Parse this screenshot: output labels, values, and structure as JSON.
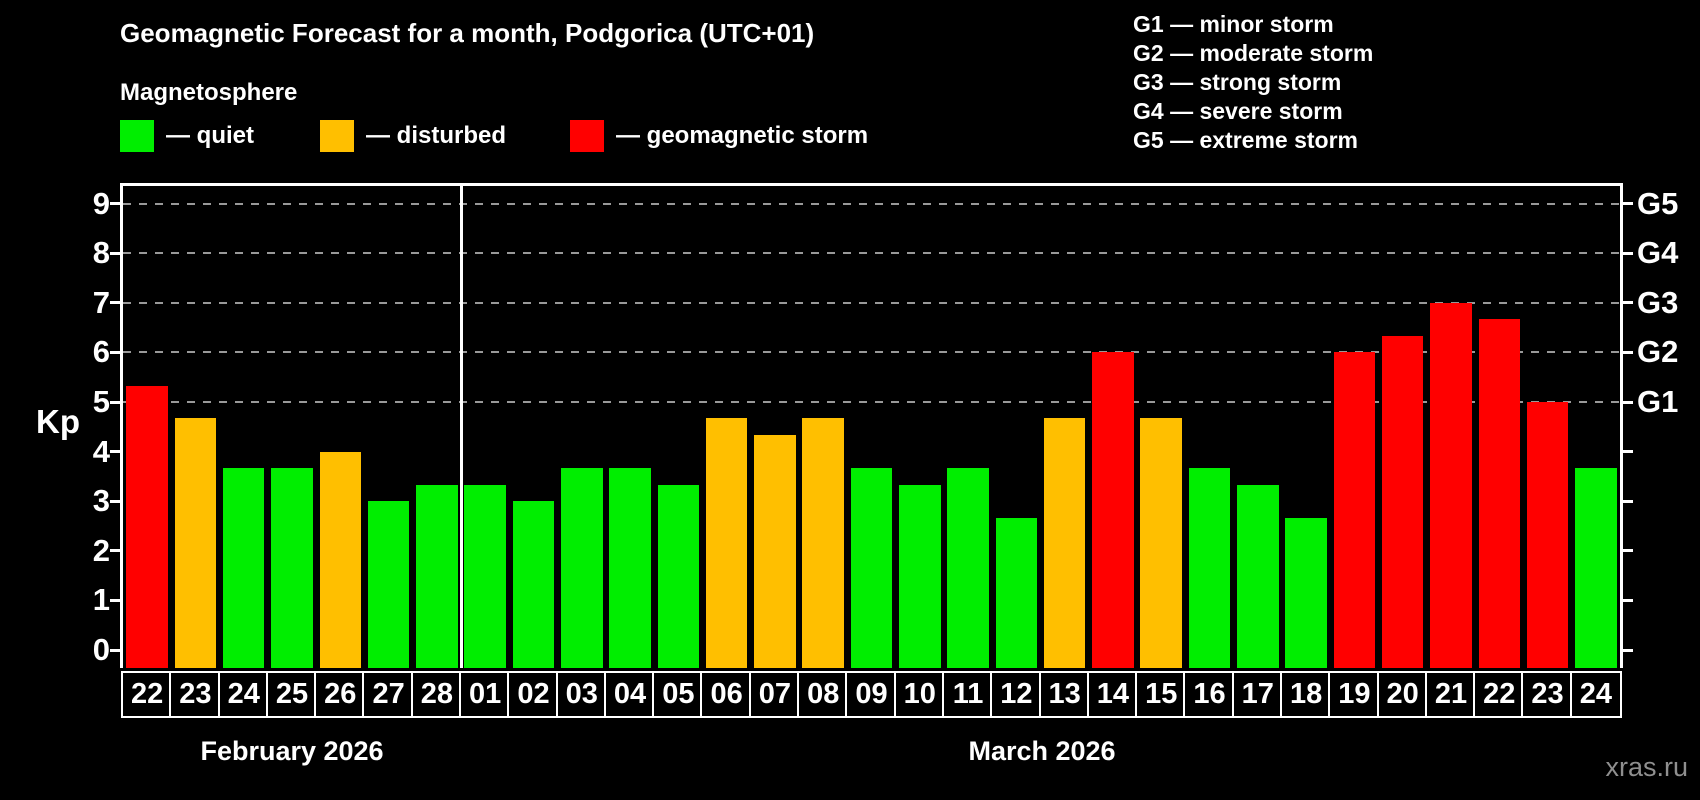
{
  "header": {
    "title": "Geomagnetic Forecast for a month, Podgorica (UTC+01)",
    "subtitle": "Magnetosphere"
  },
  "legend": {
    "items": [
      {
        "key": "quiet",
        "label": "— quiet",
        "color": "#00ee00"
      },
      {
        "key": "disturbed",
        "label": "— disturbed",
        "color": "#ffbf00"
      },
      {
        "key": "storm",
        "label": "— geomagnetic storm",
        "color": "#ff0000"
      }
    ]
  },
  "g_legend": {
    "items": [
      {
        "label": "G1 — minor storm"
      },
      {
        "label": "G2 — moderate storm"
      },
      {
        "label": "G3 — strong storm"
      },
      {
        "label": "G4 — severe storm"
      },
      {
        "label": "G5 — extreme storm"
      }
    ]
  },
  "chart_data": {
    "type": "bar",
    "ylabel": "Kp",
    "ylim": [
      -0.36,
      9.42
    ],
    "y_ticks": [
      0,
      1,
      2,
      3,
      4,
      5,
      6,
      7,
      8,
      9
    ],
    "gridlines": [
      5,
      6,
      7,
      8,
      9
    ],
    "grid_color": "#999999",
    "right_axis_labels": [
      {
        "value": 5,
        "label": "G1"
      },
      {
        "value": 6,
        "label": "G2"
      },
      {
        "value": 7,
        "label": "G3"
      },
      {
        "value": 8,
        "label": "G4"
      },
      {
        "value": 9,
        "label": "G5"
      }
    ],
    "months": [
      {
        "label": "February 2026",
        "day_count": 7
      },
      {
        "label": "March 2026",
        "day_count": 24
      }
    ],
    "points": [
      {
        "day": "22",
        "kp": 5.33,
        "status": "storm"
      },
      {
        "day": "23",
        "kp": 4.67,
        "status": "disturbed"
      },
      {
        "day": "24",
        "kp": 3.67,
        "status": "quiet"
      },
      {
        "day": "25",
        "kp": 3.67,
        "status": "quiet"
      },
      {
        "day": "26",
        "kp": 4.0,
        "status": "disturbed"
      },
      {
        "day": "27",
        "kp": 3.0,
        "status": "quiet"
      },
      {
        "day": "28",
        "kp": 3.33,
        "status": "quiet"
      },
      {
        "day": "01",
        "kp": 3.33,
        "status": "quiet"
      },
      {
        "day": "02",
        "kp": 3.0,
        "status": "quiet"
      },
      {
        "day": "03",
        "kp": 3.67,
        "status": "quiet"
      },
      {
        "day": "04",
        "kp": 3.67,
        "status": "quiet"
      },
      {
        "day": "05",
        "kp": 3.33,
        "status": "quiet"
      },
      {
        "day": "06",
        "kp": 4.67,
        "status": "disturbed"
      },
      {
        "day": "07",
        "kp": 4.33,
        "status": "disturbed"
      },
      {
        "day": "08",
        "kp": 4.67,
        "status": "disturbed"
      },
      {
        "day": "09",
        "kp": 3.67,
        "status": "quiet"
      },
      {
        "day": "10",
        "kp": 3.33,
        "status": "quiet"
      },
      {
        "day": "11",
        "kp": 3.67,
        "status": "quiet"
      },
      {
        "day": "12",
        "kp": 2.67,
        "status": "quiet"
      },
      {
        "day": "13",
        "kp": 4.67,
        "status": "disturbed"
      },
      {
        "day": "14",
        "kp": 6.0,
        "status": "storm"
      },
      {
        "day": "15",
        "kp": 4.67,
        "status": "disturbed"
      },
      {
        "day": "16",
        "kp": 3.67,
        "status": "quiet"
      },
      {
        "day": "17",
        "kp": 3.33,
        "status": "quiet"
      },
      {
        "day": "18",
        "kp": 2.67,
        "status": "quiet"
      },
      {
        "day": "19",
        "kp": 6.0,
        "status": "storm"
      },
      {
        "day": "20",
        "kp": 6.33,
        "status": "storm"
      },
      {
        "day": "21",
        "kp": 7.0,
        "status": "storm"
      },
      {
        "day": "22",
        "kp": 6.67,
        "status": "storm"
      },
      {
        "day": "23",
        "kp": 5.0,
        "status": "storm"
      },
      {
        "day": "24",
        "kp": 3.67,
        "status": "quiet"
      }
    ]
  },
  "watermark": "xras.ru"
}
